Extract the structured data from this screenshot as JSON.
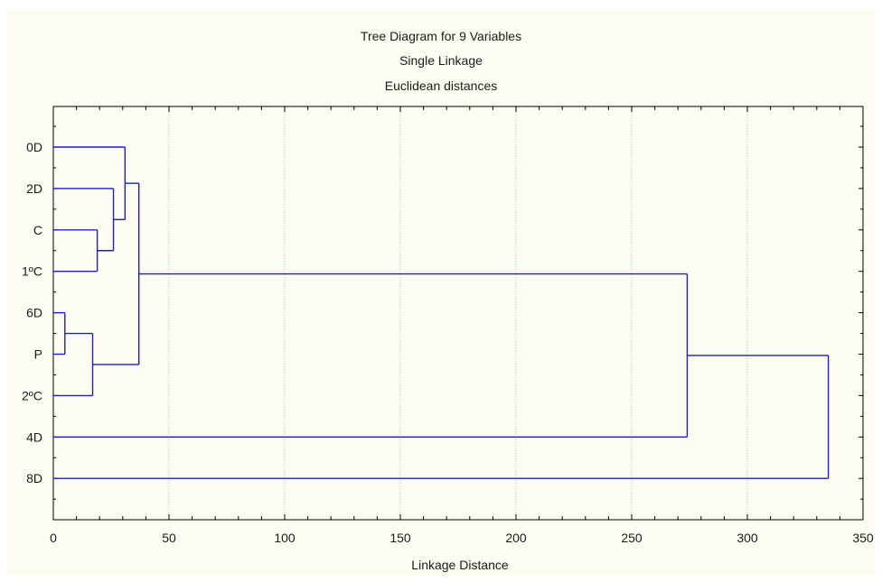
{
  "chart_data": {
    "type": "dendrogram",
    "title": "Tree Diagram for 9   Variables",
    "subtitle1": "Single Linkage",
    "subtitle2": "Euclidean distances",
    "xlabel": "Linkage Distance",
    "xlim": [
      0,
      350
    ],
    "x_ticks": [
      "0",
      "50",
      "100",
      "150",
      "200",
      "250",
      "300",
      "350"
    ],
    "grid": "vertical dotted",
    "colors": {
      "link": "#1f1fbf",
      "grid": "#b8b8b8",
      "axis": "#000000",
      "background": "#fdfdf3"
    },
    "leaves": [
      "0D",
      "2D",
      "C",
      "1ºC",
      "6D",
      "P",
      "2ºC",
      "4D",
      "8D"
    ],
    "merges": [
      {
        "a": "6D",
        "b": "P",
        "distance": 5
      },
      {
        "a": "C",
        "b": "1ºC",
        "distance": 19
      },
      {
        "a": "6D+P",
        "b": "2ºC",
        "distance": 17
      },
      {
        "a": "2D",
        "b": "C+1ºC",
        "distance": 26
      },
      {
        "a": "0D",
        "b": "2D+C+1ºC",
        "distance": 31
      },
      {
        "a": "0D+2D+C+1ºC",
        "b": "6D+P+2ºC",
        "distance": 37
      },
      {
        "a": "first 7",
        "b": "4D",
        "distance": 274
      },
      {
        "a": "first 8",
        "b": "8D",
        "distance": 335
      }
    ]
  }
}
